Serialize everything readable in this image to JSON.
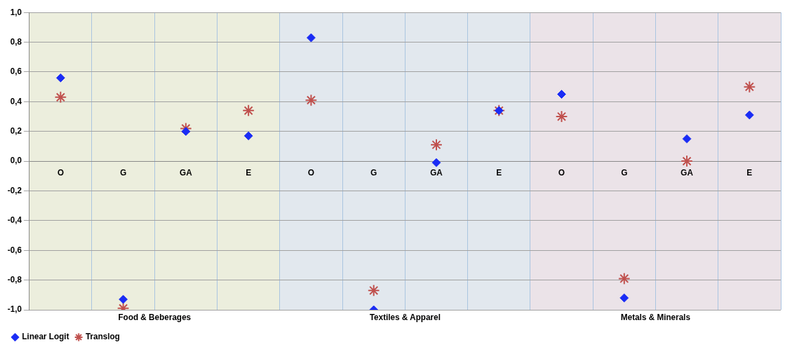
{
  "chart_data": {
    "type": "scatter",
    "categories": [
      "O",
      "G",
      "GA",
      "E",
      "O",
      "G",
      "GA",
      "E",
      "O",
      "G",
      "GA",
      "E"
    ],
    "series": [
      {
        "name": "Linear Logit",
        "color": "#1a2cf5",
        "marker": "diamond",
        "values": [
          0.56,
          -0.93,
          0.2,
          0.17,
          0.83,
          -1.0,
          -0.01,
          0.34,
          0.45,
          -0.92,
          0.15,
          0.31
        ]
      },
      {
        "name": "Translog",
        "color": "#c0504d",
        "marker": "cross",
        "values": [
          0.43,
          -0.99,
          0.22,
          0.34,
          0.41,
          -0.87,
          0.11,
          0.34,
          0.3,
          -0.79,
          0.0,
          0.5
        ]
      }
    ],
    "ylim": [
      -1.0,
      1.0
    ],
    "yticks": [
      {
        "value": -1.0,
        "label": "-1,0"
      },
      {
        "value": -0.8,
        "label": "-0,8"
      },
      {
        "value": -0.6,
        "label": "-0,6"
      },
      {
        "value": -0.4,
        "label": "-0,4"
      },
      {
        "value": -0.2,
        "label": "-0,2"
      },
      {
        "value": 0,
        "label": "0,0"
      },
      {
        "value": 0.2,
        "label": "0,2"
      },
      {
        "value": 0.4,
        "label": "0,4"
      },
      {
        "value": 0.6,
        "label": "0,6"
      },
      {
        "value": 0.8,
        "label": "0,8"
      },
      {
        "value": 1.0,
        "label": "1,0"
      }
    ],
    "annotations": [
      "Food & Beberages",
      "Textiles & Apparel",
      "Metals & Minerals"
    ],
    "grid": true,
    "legend": "bottom left"
  }
}
